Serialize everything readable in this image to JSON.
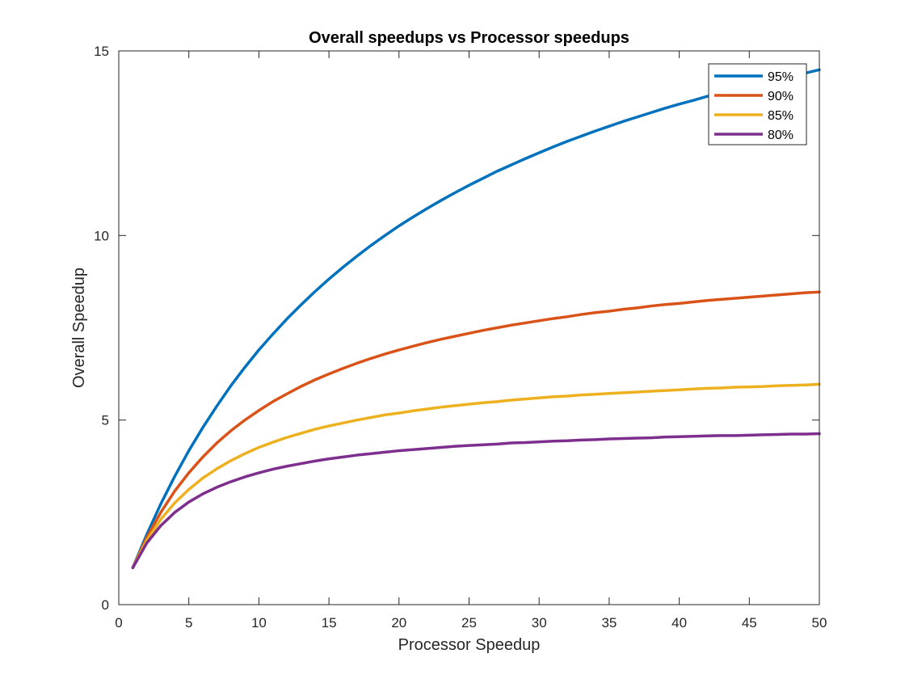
{
  "chart_data": {
    "type": "line",
    "title": "Overall speedups vs Processor speedups",
    "xlabel": "Processor Speedup",
    "ylabel": "Overall Speedup",
    "xlim": [
      0,
      50
    ],
    "ylim": [
      0,
      15
    ],
    "xticks": [
      0,
      5,
      10,
      15,
      20,
      25,
      30,
      35,
      40,
      45,
      50
    ],
    "yticks": [
      0,
      5,
      10,
      15
    ],
    "grid": false,
    "legend_position": "top-right",
    "x": [
      1,
      2,
      3,
      4,
      5,
      6,
      7,
      8,
      9,
      10,
      11,
      12,
      13,
      14,
      15,
      16,
      17,
      18,
      19,
      20,
      21,
      22,
      23,
      24,
      25,
      26,
      27,
      28,
      29,
      30,
      31,
      32,
      33,
      34,
      35,
      36,
      37,
      38,
      39,
      40,
      41,
      42,
      43,
      44,
      45,
      46,
      47,
      48,
      49,
      50
    ],
    "series": [
      {
        "name": "95%",
        "color": "#0072bd",
        "values": [
          1.0,
          1.9,
          2.73,
          3.48,
          4.17,
          4.8,
          5.38,
          5.93,
          6.43,
          6.9,
          7.33,
          7.74,
          8.12,
          8.48,
          8.82,
          9.14,
          9.44,
          9.73,
          10.0,
          10.26,
          10.5,
          10.73,
          10.95,
          11.16,
          11.36,
          11.55,
          11.74,
          11.91,
          12.08,
          12.24,
          12.4,
          12.55,
          12.69,
          12.83,
          12.96,
          13.09,
          13.21,
          13.33,
          13.45,
          13.56,
          13.66,
          13.77,
          13.87,
          13.96,
          14.06,
          14.15,
          14.24,
          14.32,
          14.4,
          14.49
        ]
      },
      {
        "name": "90%",
        "color": "#d95319",
        "values": [
          1.0,
          1.82,
          2.5,
          3.08,
          3.57,
          4.0,
          4.38,
          4.71,
          5.0,
          5.26,
          5.5,
          5.71,
          5.91,
          6.09,
          6.25,
          6.4,
          6.54,
          6.67,
          6.79,
          6.9,
          7.0,
          7.1,
          7.19,
          7.27,
          7.35,
          7.43,
          7.5,
          7.57,
          7.63,
          7.69,
          7.75,
          7.8,
          7.86,
          7.91,
          7.95,
          8.0,
          8.04,
          8.09,
          8.13,
          8.16,
          8.2,
          8.24,
          8.27,
          8.3,
          8.33,
          8.36,
          8.39,
          8.42,
          8.45,
          8.47
        ]
      },
      {
        "name": "85%",
        "color": "#edb120",
        "values": [
          1.0,
          1.74,
          2.31,
          2.76,
          3.12,
          3.43,
          3.68,
          3.9,
          4.09,
          4.26,
          4.4,
          4.53,
          4.64,
          4.75,
          4.84,
          4.92,
          5.0,
          5.07,
          5.14,
          5.19,
          5.25,
          5.3,
          5.35,
          5.39,
          5.43,
          5.47,
          5.5,
          5.54,
          5.57,
          5.6,
          5.63,
          5.65,
          5.68,
          5.7,
          5.72,
          5.74,
          5.76,
          5.78,
          5.8,
          5.82,
          5.84,
          5.86,
          5.87,
          5.89,
          5.9,
          5.91,
          5.93,
          5.94,
          5.95,
          5.97
        ]
      },
      {
        "name": "80%",
        "color": "#7e2f8e",
        "values": [
          1.0,
          1.67,
          2.14,
          2.5,
          2.78,
          3.0,
          3.18,
          3.33,
          3.46,
          3.57,
          3.67,
          3.75,
          3.82,
          3.89,
          3.95,
          4.0,
          4.05,
          4.09,
          4.13,
          4.17,
          4.2,
          4.23,
          4.26,
          4.29,
          4.31,
          4.33,
          4.35,
          4.38,
          4.39,
          4.41,
          4.43,
          4.44,
          4.46,
          4.47,
          4.49,
          4.5,
          4.51,
          4.52,
          4.54,
          4.55,
          4.56,
          4.57,
          4.58,
          4.58,
          4.59,
          4.6,
          4.61,
          4.62,
          4.62,
          4.63
        ]
      }
    ]
  }
}
